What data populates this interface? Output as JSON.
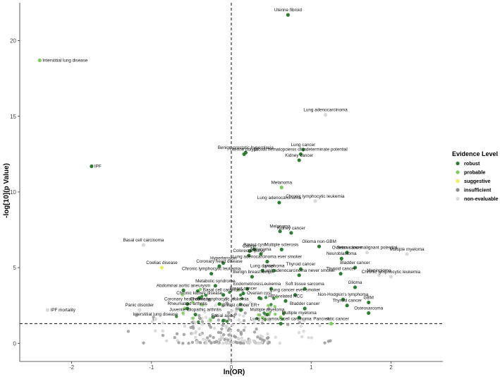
{
  "chart_data": {
    "type": "scatter",
    "xlabel": "ln(OR)",
    "ylabel": "-log[10](p Value)",
    "xlim": [
      -2.65,
      2.65
    ],
    "ylim": [
      -1.2,
      22.5
    ],
    "xticks": [
      -2,
      -1,
      0,
      1,
      2
    ],
    "yticks": [
      0,
      5,
      10,
      15,
      20
    ],
    "grid": false,
    "vline_x": 0,
    "hline_y": 1.3,
    "legend": {
      "title": "Evidence Level",
      "position": "right",
      "levels": [
        {
          "name": "robust",
          "color": "#2e7d32"
        },
        {
          "name": "probable",
          "color": "#7ccd5a"
        },
        {
          "name": "suggestive",
          "color": "#e8ee5a"
        },
        {
          "name": "insufficient",
          "color": "#8a8a8a"
        },
        {
          "name": "non-evaluable",
          "color": "#d9d9d9"
        }
      ]
    },
    "points": [
      {
        "x": 0.71,
        "y": 21.7,
        "level": "robust",
        "label": "Uterine fibroid"
      },
      {
        "x": -2.4,
        "y": 18.7,
        "level": "probable",
        "label": "Interstitial lung disease"
      },
      {
        "x": 1.18,
        "y": 15.1,
        "level": "non-evaluable",
        "label": "Lung adenocarcinoma"
      },
      {
        "x": 0.18,
        "y": 12.6,
        "level": "robust",
        "label": "Benign prostatic hyperplasia"
      },
      {
        "x": 0.16,
        "y": 12.5,
        "level": "robust",
        "label": "Uterine polyps"
      },
      {
        "x": 0.9,
        "y": 12.8,
        "level": "robust",
        "label": "Lung cancer"
      },
      {
        "x": 0.87,
        "y": 12.5,
        "level": "robust",
        "label": "Clonal hematopoiesis of indeterminate potential"
      },
      {
        "x": 0.85,
        "y": 12.1,
        "level": "robust",
        "label": "Kidney cancer"
      },
      {
        "x": -1.75,
        "y": 11.7,
        "level": "robust",
        "label": "IPF"
      },
      {
        "x": 0.63,
        "y": 10.3,
        "level": "probable",
        "label": "Melanoma"
      },
      {
        "x": 1.05,
        "y": 9.4,
        "level": "non-evaluable",
        "label": "Chronic lymphocytic leukemia"
      },
      {
        "x": 0.6,
        "y": 9.3,
        "level": "robust",
        "label": "Lung adenocarcinoma"
      },
      {
        "x": 0.61,
        "y": 7.4,
        "level": "robust",
        "label": "Melanoma"
      },
      {
        "x": 0.75,
        "y": 7.3,
        "level": "robust",
        "label": "Kidney cancer"
      },
      {
        "x": 1.1,
        "y": 6.4,
        "level": "robust",
        "label": "Glioma non-GBM"
      },
      {
        "x": 0.29,
        "y": 6.2,
        "level": "robust",
        "label": "Breast cyst"
      },
      {
        "x": 0.63,
        "y": 6.2,
        "level": "robust",
        "label": "Multiple sclerosis"
      },
      {
        "x": 0.23,
        "y": 6.1,
        "level": "robust",
        "label": "Cancer"
      },
      {
        "x": 0.37,
        "y": 5.9,
        "level": "robust",
        "label": "Melanoma"
      },
      {
        "x": 0.22,
        "y": 5.8,
        "level": "robust",
        "label": "Colorectal polyp"
      },
      {
        "x": 1.45,
        "y": 6.0,
        "level": "robust",
        "label": "Ovarian cancer"
      },
      {
        "x": 1.7,
        "y": 6.0,
        "level": "non-evaluable",
        "label": "Serous low malignant potential"
      },
      {
        "x": 2.2,
        "y": 5.9,
        "level": "non-evaluable",
        "label": "Multiple myeloma"
      },
      {
        "x": 1.38,
        "y": 5.6,
        "level": "robust",
        "label": "Neuroblastoma"
      },
      {
        "x": -1.1,
        "y": 6.5,
        "level": "non-evaluable",
        "label": "Basal cell carcinoma"
      },
      {
        "x": -0.1,
        "y": 5.3,
        "level": "robust",
        "label": "Hypertension"
      },
      {
        "x": 0.45,
        "y": 5.4,
        "level": "robust",
        "label": "Lung adenocarcinoma ever smoker"
      },
      {
        "x": -0.15,
        "y": 5.1,
        "level": "robust",
        "label": "Coronary heart disease"
      },
      {
        "x": 1.55,
        "y": 5.0,
        "level": "robust",
        "label": "Bladder cancer"
      },
      {
        "x": -0.87,
        "y": 5.0,
        "level": "suggestive",
        "label": "Coeliac disease"
      },
      {
        "x": 0.39,
        "y": 4.8,
        "level": "robust",
        "label": "Lung cancer"
      },
      {
        "x": 0.53,
        "y": 4.8,
        "level": "robust",
        "label": "Lymphoma"
      },
      {
        "x": 0.87,
        "y": 4.9,
        "level": "robust",
        "label": "Thyroid cancer"
      },
      {
        "x": 1.37,
        "y": 4.6,
        "level": "robust",
        "label": "Thyroid cancer"
      },
      {
        "x": 2.0,
        "y": 4.4,
        "level": "non-evaluable",
        "label": "Chronic lymphocytic leukemia"
      },
      {
        "x": 0.26,
        "y": 4.4,
        "level": "robust",
        "label": "Benign breast lump"
      },
      {
        "x": 0.85,
        "y": 4.5,
        "level": "robust",
        "label": "Lung adenocarcinoma never smoker"
      },
      {
        "x": 1.85,
        "y": 4.5,
        "level": "non-evaluable",
        "label": "Meningioma"
      },
      {
        "x": -0.25,
        "y": 4.6,
        "level": "robust",
        "label": "Chronic lymphocytic leukemia"
      },
      {
        "x": 1.55,
        "y": 3.7,
        "level": "robust",
        "label": "Glioma"
      },
      {
        "x": -0.2,
        "y": 3.8,
        "level": "robust",
        "label": "Metabolic syndrome"
      },
      {
        "x": 0.2,
        "y": 3.6,
        "level": "robust",
        "label": "Endometriosis"
      },
      {
        "x": 0.5,
        "y": 3.6,
        "level": "robust",
        "label": "Leukemia"
      },
      {
        "x": 0.92,
        "y": 3.6,
        "level": "robust",
        "label": "Soft tissue sarcoma"
      },
      {
        "x": -0.6,
        "y": 3.5,
        "level": "robust",
        "label": "Abdominal aortic aneurysm"
      },
      {
        "x": 0.15,
        "y": 3.3,
        "level": "robust",
        "label": "Breast cancer"
      },
      {
        "x": 0.8,
        "y": 3.2,
        "level": "robust",
        "label": "Lung cancer ever smoker"
      },
      {
        "x": -0.1,
        "y": 3.2,
        "level": "robust",
        "label": "Basal cell carcinoma"
      },
      {
        "x": -0.4,
        "y": 3.0,
        "level": "robust",
        "label": "Chronic kidney disease"
      },
      {
        "x": 1.4,
        "y": 2.9,
        "level": "robust",
        "label": "Non-Hodgkin's lymphoma"
      },
      {
        "x": 0.35,
        "y": 3.0,
        "level": "robust",
        "label": "Ovarian cyst"
      },
      {
        "x": 0.68,
        "y": 2.8,
        "level": "robust",
        "label": "HBV-related HCC"
      },
      {
        "x": -0.55,
        "y": 2.6,
        "level": "robust",
        "label": "Coronary heart disease"
      },
      {
        "x": -0.15,
        "y": 2.6,
        "level": "robust",
        "label": "Chronic lymphocytic leukemia"
      },
      {
        "x": 1.72,
        "y": 2.7,
        "level": "robust",
        "label": "GBM"
      },
      {
        "x": -0.55,
        "y": 2.3,
        "level": "robust",
        "label": "Rheumatoid arthritis"
      },
      {
        "x": 1.45,
        "y": 2.5,
        "level": "robust",
        "label": "Thyroid cancer"
      },
      {
        "x": 0.92,
        "y": 2.3,
        "level": "robust",
        "label": "Bladder cancer"
      },
      {
        "x": 0.12,
        "y": 2.2,
        "level": "robust",
        "label": "Breast cancer ER+"
      },
      {
        "x": -1.15,
        "y": 2.2,
        "level": "non-evaluable",
        "label": "Panic disorder"
      },
      {
        "x": -2.3,
        "y": 2.2,
        "level": "non-evaluable",
        "label": "IPF mortality"
      },
      {
        "x": -0.45,
        "y": 1.9,
        "level": "robust",
        "label": "Juvenile idiopathic arthritis"
      },
      {
        "x": 0.45,
        "y": 1.9,
        "level": "robust",
        "label": "Multiple myeloma"
      },
      {
        "x": 1.72,
        "y": 2.0,
        "level": "robust",
        "label": "Osteosarcoma"
      },
      {
        "x": 0.85,
        "y": 1.7,
        "level": "robust",
        "label": "Multiple myeloma"
      },
      {
        "x": -0.95,
        "y": 1.6,
        "level": "non-evaluable",
        "label": "Interstitial lung disease"
      },
      {
        "x": -0.1,
        "y": 1.5,
        "level": "robust",
        "label": "Facial aging"
      },
      {
        "x": 0.62,
        "y": 1.3,
        "level": "robust",
        "label": "Lung squamous cell carcinoma"
      },
      {
        "x": 1.25,
        "y": 1.3,
        "level": "probable",
        "label": "Pancreatic cancer"
      }
    ]
  }
}
